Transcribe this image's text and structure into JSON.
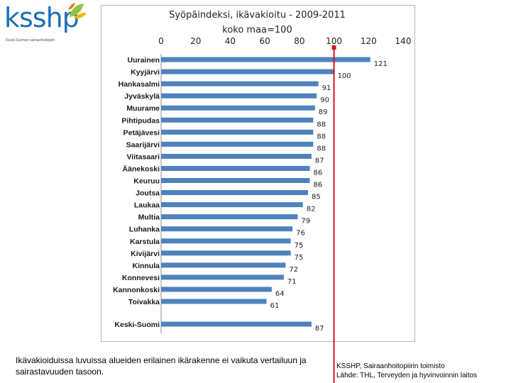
{
  "logo": {
    "text": "ksshp",
    "subtitle": "Keski-Suomen sairaanhoitopiiri"
  },
  "chart_data": {
    "type": "bar",
    "orientation": "horizontal",
    "title": "Syöpäindeksi, ikävakioitu - 2009-2011",
    "subtitle": "koko maa=100",
    "xlim": [
      0,
      140
    ],
    "xticks": [
      "0",
      "20",
      "40",
      "60",
      "80",
      "100",
      "120",
      "140"
    ],
    "reference_line": {
      "value": 100,
      "color": "#d0161d"
    },
    "bar_color": "#4f81bd",
    "categories": [
      "Uurainen",
      "Kyyjärvi",
      "Hankasalmi",
      "Jyväskylä",
      "Muurame",
      "Pihtipudas",
      "Petäjävesi",
      "Saarijärvi",
      "Viitasaari",
      "Äänekoski",
      "Keuruu",
      "Joutsa",
      "Laukaa",
      "Multia",
      "Luhanka",
      "Karstula",
      "Kivijärvi",
      "Kinnula",
      "Konnevesi",
      "Kannonkoski",
      "Toivakka",
      "Keski-Suomi"
    ],
    "values": [
      121,
      100,
      91,
      90,
      89,
      88,
      88,
      88,
      87,
      86,
      86,
      85,
      82,
      79,
      76,
      75,
      75,
      72,
      71,
      64,
      61,
      87
    ]
  },
  "footer": {
    "note": "Ikävakioiduissa luvuissa alueiden erilainen ikärakenne ei vaikuta vertailuun ja sairastavuuden tasoon.",
    "org": "KSSHP, Sairaanhoitopiirin toimisto",
    "source": "Lähde:  THL, Terveyden ja hyvinvoinnin laitos"
  }
}
